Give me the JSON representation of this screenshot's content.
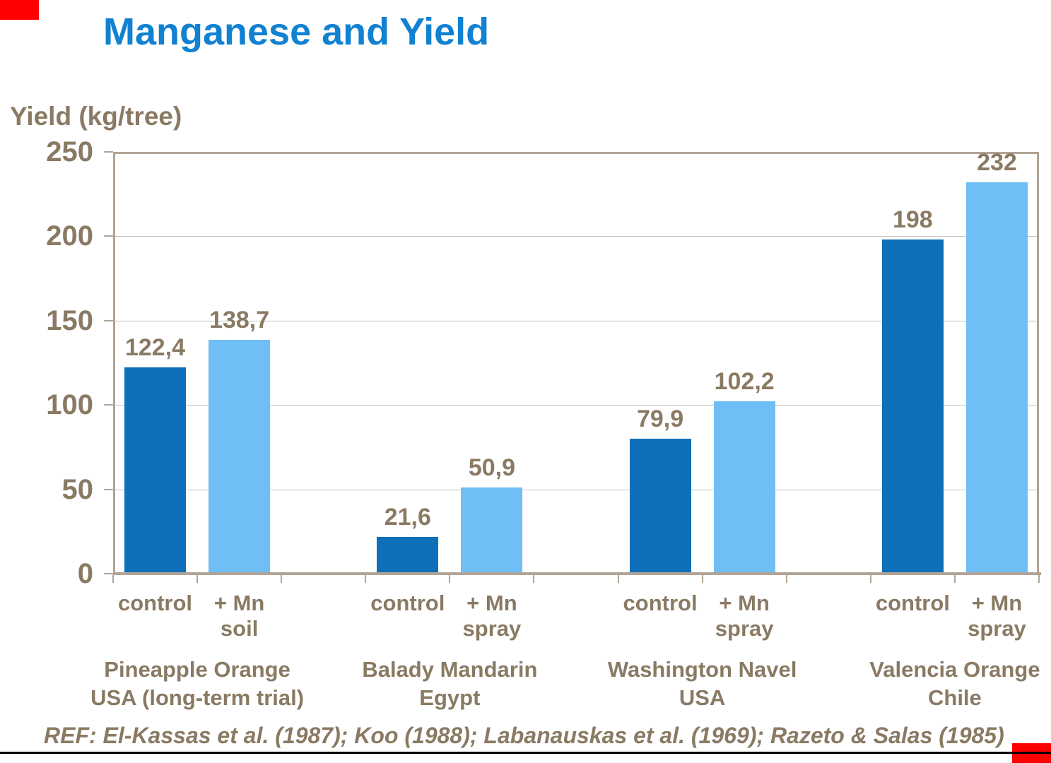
{
  "title": "Manganese and Yield",
  "y_axis_title": "Yield (kg/tree)",
  "ref_text": "REF: El-Kassas et al. (1987); Koo (1988); Labanauskas et al. (1969); Razeto & Salas (1985)",
  "colors": {
    "title": "#1181d2",
    "control_bar": "#0d70b8",
    "mn_bar": "#6fbef5",
    "text_brown": "#8a7a63",
    "axis_frame": "#b2a496",
    "gridline": "#c3c3c3",
    "bottom_rule": "#000000",
    "corner_mark": "#ff0000"
  },
  "chart_data": {
    "type": "bar",
    "title": "Manganese and Yield",
    "xlabel": "",
    "ylabel": "Yield (kg/tree)",
    "ylim": [
      0,
      250
    ],
    "yticks": [
      0,
      50,
      100,
      150,
      200,
      250
    ],
    "grid": true,
    "legend_position": "none",
    "series_names": [
      "control",
      "+ Mn"
    ],
    "groups": [
      {
        "name_lines": [
          "Pineapple Orange",
          "USA (long-term trial)"
        ],
        "bars": [
          {
            "series": "control",
            "label_lines": [
              "control"
            ],
            "value": 122.4,
            "value_label": "122,4"
          },
          {
            "series": "mn",
            "label_lines": [
              "+ Mn",
              "soil"
            ],
            "value": 138.7,
            "value_label": "138,7"
          }
        ]
      },
      {
        "name_lines": [
          "Balady Mandarin",
          "Egypt"
        ],
        "bars": [
          {
            "series": "control",
            "label_lines": [
              "control"
            ],
            "value": 21.6,
            "value_label": "21,6"
          },
          {
            "series": "mn",
            "label_lines": [
              "+ Mn",
              "spray"
            ],
            "value": 50.9,
            "value_label": "50,9"
          }
        ]
      },
      {
        "name_lines": [
          "Washington Navel",
          "USA"
        ],
        "bars": [
          {
            "series": "control",
            "label_lines": [
              "control"
            ],
            "value": 79.9,
            "value_label": "79,9"
          },
          {
            "series": "mn",
            "label_lines": [
              "+ Mn",
              "spray"
            ],
            "value": 102.2,
            "value_label": "102,2"
          }
        ]
      },
      {
        "name_lines": [
          "Valencia Orange",
          "Chile"
        ],
        "bars": [
          {
            "series": "control",
            "label_lines": [
              "control"
            ],
            "value": 198,
            "value_label": "198"
          },
          {
            "series": "mn",
            "label_lines": [
              "+ Mn",
              "spray"
            ],
            "value": 232,
            "value_label": "232"
          }
        ]
      }
    ]
  }
}
